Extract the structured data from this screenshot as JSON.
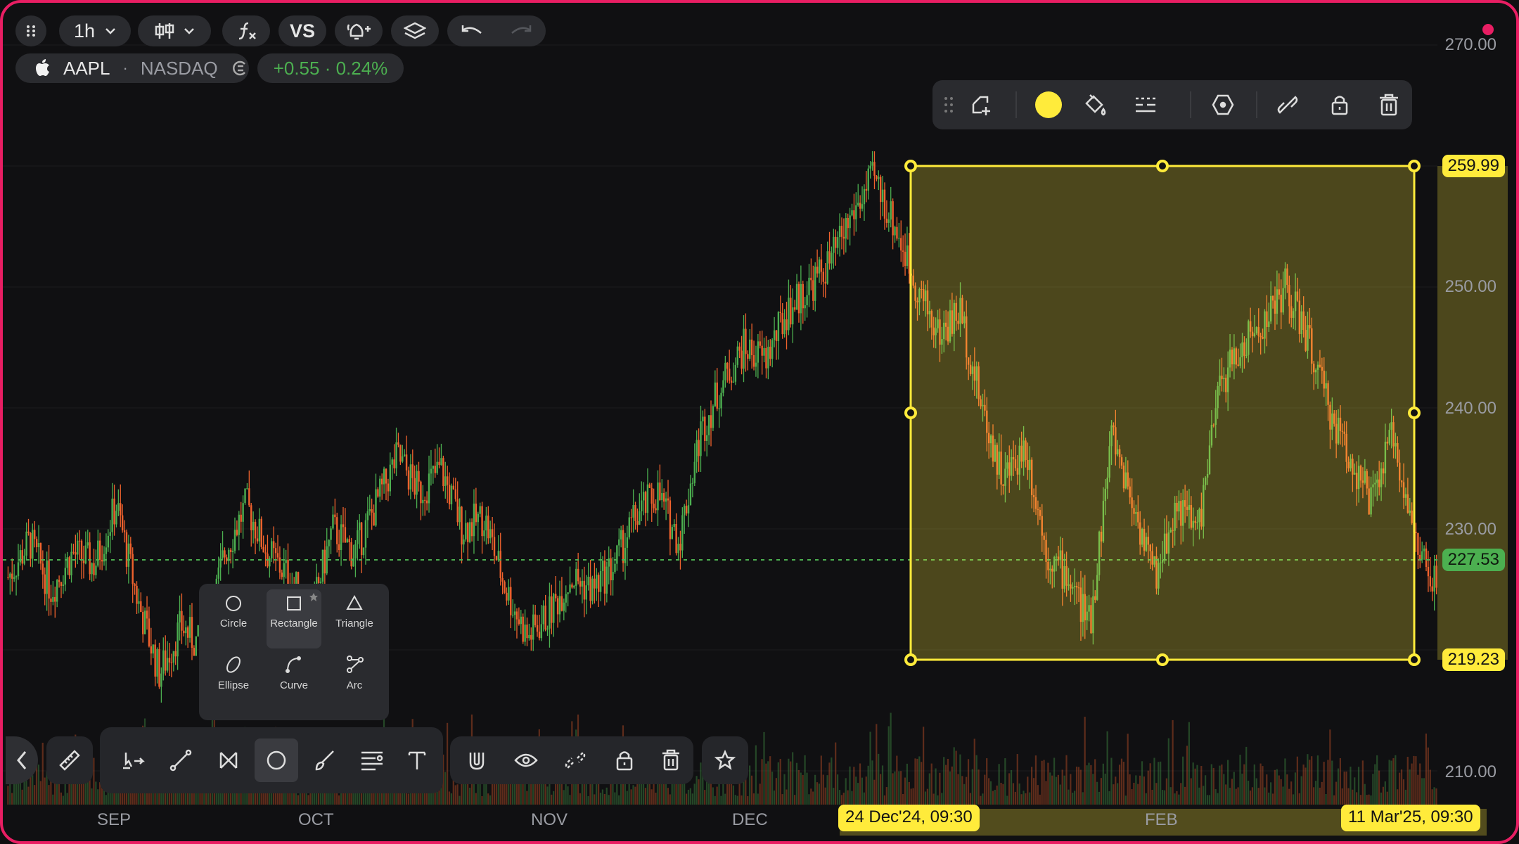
{
  "toolbar": {
    "menu_icon": "grid-dots-icon",
    "interval": "1h",
    "chart_type_icon": "candles-icon",
    "indicators_icon": "indicators-icon",
    "compare_label": "VS",
    "alert_icon": "alert-add-icon",
    "layers_icon": "layers-icon",
    "undo_icon": "undo-icon",
    "redo_icon": "redo-icon"
  },
  "symbol": {
    "logo_icon": "apple-logo-icon",
    "ticker": "AAPL",
    "separator": "·",
    "exchange": "NASDAQ",
    "change": "+0.55 · 0.24%"
  },
  "price_axis": {
    "labels": [
      "270.00",
      "250.00",
      "240.00",
      "230.00",
      "210.00"
    ],
    "rect_top_tag": "259.99",
    "last_price_tag": "227.53",
    "rect_bottom_tag": "219.23"
  },
  "time_axis": {
    "labels": [
      "SEP",
      "OCT",
      "NOV",
      "DEC",
      "FEB"
    ],
    "range_start": "24 Dec'24, 09:30",
    "range_end": "11 Mar'25, 09:30"
  },
  "drawing_toolbar": {
    "items": [
      "drag-handle-icon",
      "template-add-icon",
      "color-swatch",
      "fill-bucket-icon",
      "line-style-icon",
      "visibility-hex-icon",
      "link-icon",
      "lock-icon",
      "trash-icon"
    ],
    "color": "#ffeb3b"
  },
  "shape_menu": {
    "items": [
      {
        "label": "Circle"
      },
      {
        "label": "Rectangle"
      },
      {
        "label": "Triangle"
      },
      {
        "label": "Ellipse"
      },
      {
        "label": "Curve"
      },
      {
        "label": "Arc"
      }
    ]
  },
  "bottom_tools": [
    "back-chevron-icon",
    "ruler-icon",
    "cursor-arrows-icon",
    "trend-line-icon",
    "pattern-icon",
    "circle-shape-icon",
    "brush-icon",
    "fib-lines-icon",
    "text-icon",
    "magnet-icon",
    "eye-icon",
    "unlink-icon",
    "lock-icon",
    "trash-icon",
    "star-icon"
  ],
  "colors": {
    "up": "#4caf50",
    "down": "#f0622d",
    "accent": "#ffeb3b",
    "frame": "#e91e63"
  },
  "chart_data": {
    "type": "candlestick",
    "symbol": "AAPL",
    "x": [
      "SEP",
      "OCT",
      "NOV",
      "DEC",
      "FEB"
    ],
    "ylim": [
      207,
      272
    ],
    "close_path": [
      226,
      229,
      225,
      228,
      227,
      232,
      224,
      218,
      222,
      220,
      228,
      232,
      228,
      226,
      223,
      230,
      228,
      232,
      236,
      233,
      235,
      230,
      231,
      225,
      221,
      223,
      226,
      225,
      227,
      231,
      233,
      229,
      238,
      242,
      245,
      244,
      248,
      250,
      252,
      256,
      259,
      255,
      250,
      246,
      248,
      240,
      234,
      237,
      228,
      226,
      222,
      238,
      232,
      226,
      232,
      230,
      242,
      245,
      247,
      250,
      246,
      240,
      236,
      232,
      238,
      229,
      225
    ],
    "last_price": 227.53,
    "rectangle": {
      "top": 259.99,
      "bottom": 219.23,
      "start": "24 Dec'24, 09:30",
      "end": "11 Mar'25, 09:30"
    }
  }
}
